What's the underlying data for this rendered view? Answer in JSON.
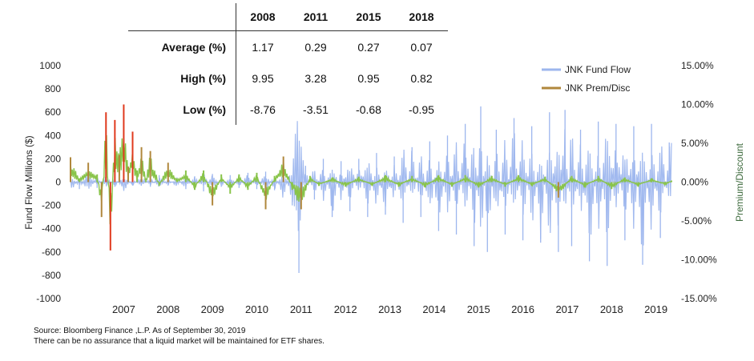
{
  "stats_table": {
    "columns": [
      "2008",
      "2011",
      "2015",
      "2018"
    ],
    "rows": [
      {
        "label": "Average (%)",
        "values": [
          "1.17",
          "0.29",
          "0.27",
          "0.07"
        ]
      },
      {
        "label": "High (%)",
        "values": [
          "9.95",
          "3.28",
          "0.95",
          "0.82"
        ]
      },
      {
        "label": "Low (%)",
        "values": [
          "-8.76",
          "-3.51",
          "-0.68",
          "-0.95"
        ]
      }
    ]
  },
  "source": {
    "line1": "Source: Bloomberg Finance ,L.P. As of September 30, 2019",
    "line2": "There can be no assurance that a liquid market will be maintained for ETF shares."
  },
  "colors": {
    "flow": "#9db6ee",
    "prem": "#b0873c",
    "prem_high": "#e03a1e",
    "prem_low": "#89c44a"
  },
  "chart_data": {
    "type": "line",
    "title": "",
    "xlabel": "",
    "ylabel": "Fund Flow Millions ($)",
    "y2label": "Premium/Discount",
    "ylim": [
      -1000,
      1000
    ],
    "y2lim": [
      -15,
      15
    ],
    "xlim": [
      2006.3,
      2019.85
    ],
    "yticks": [
      "1000",
      "800",
      "600",
      "400",
      "200",
      "0",
      "-200",
      "-400",
      "-600",
      "-800",
      "-1000"
    ],
    "y2ticks": [
      "15.00%",
      "10.00%",
      "5.00%",
      "0.00%",
      "-5.00%",
      "-10.00%",
      "-15.00%"
    ],
    "xticks": [
      "2007",
      "2008",
      "2009",
      "2010",
      "2011",
      "2012",
      "2013",
      "2014",
      "2015",
      "2016",
      "2017",
      "2018",
      "2019"
    ],
    "legend_position": "top-right",
    "series": [
      {
        "name": "JNK Fund Flow",
        "axis": "left",
        "x": [
          2006.3,
          2006.5,
          2006.7,
          2006.9,
          2007.1,
          2007.3,
          2007.5,
          2007.7,
          2007.9,
          2008.1,
          2008.3,
          2008.5,
          2008.7,
          2008.9,
          2009.1,
          2009.3,
          2009.5,
          2009.7,
          2009.9,
          2010.1,
          2010.3,
          2010.5,
          2010.7,
          2010.9,
          2011.1,
          2011.3,
          2011.45,
          2011.6,
          2011.8,
          2012.0,
          2012.2,
          2012.4,
          2012.6,
          2012.8,
          2013.0,
          2013.2,
          2013.4,
          2013.6,
          2013.8,
          2014.0,
          2014.2,
          2014.4,
          2014.6,
          2014.8,
          2015.0,
          2015.2,
          2015.4,
          2015.55,
          2015.7,
          2015.9,
          2016.1,
          2016.3,
          2016.5,
          2016.7,
          2016.9,
          2017.1,
          2017.3,
          2017.45,
          2017.6,
          2017.8,
          2018.0,
          2018.2,
          2018.4,
          2018.6,
          2018.8,
          2019.0,
          2019.2,
          2019.4,
          2019.6,
          2019.8
        ],
        "values": [
          100,
          -60,
          120,
          -50,
          60,
          -40,
          80,
          -30,
          50,
          -40,
          60,
          -30,
          40,
          -60,
          50,
          -80,
          70,
          -40,
          60,
          -50,
          80,
          -60,
          90,
          -70,
          150,
          -200,
          -780,
          140,
          -150,
          200,
          -300,
          180,
          -250,
          200,
          -300,
          250,
          -280,
          220,
          -350,
          300,
          -300,
          350,
          -420,
          400,
          -450,
          500,
          -550,
          650,
          -600,
          450,
          -450,
          550,
          -500,
          480,
          -520,
          600,
          -600,
          620,
          -550,
          450,
          -680,
          520,
          -720,
          500,
          -500,
          480,
          -710,
          500,
          -480,
          340
        ]
      },
      {
        "name": "JNK Prem/Disc",
        "axis": "right",
        "x": [
          2006.3,
          2006.5,
          2006.7,
          2006.9,
          2007.0,
          2007.1,
          2007.2,
          2007.3,
          2007.4,
          2007.5,
          2007.6,
          2007.7,
          2007.8,
          2007.9,
          2008.0,
          2008.1,
          2008.3,
          2008.5,
          2008.7,
          2008.9,
          2009.1,
          2009.3,
          2009.5,
          2009.7,
          2009.9,
          2010.1,
          2010.3,
          2010.5,
          2010.7,
          2010.9,
          2011.1,
          2011.3,
          2011.5,
          2011.7,
          2011.9,
          2012.2,
          2012.5,
          2012.8,
          2013.1,
          2013.4,
          2013.7,
          2014.0,
          2014.3,
          2014.6,
          2014.9,
          2015.2,
          2015.5,
          2015.8,
          2016.1,
          2016.4,
          2016.7,
          2017.0,
          2017.3,
          2017.6,
          2017.9,
          2018.2,
          2018.5,
          2018.8,
          2019.1,
          2019.4,
          2019.7,
          2019.85
        ],
        "values": [
          3.2,
          0.5,
          2.5,
          1.0,
          -4.5,
          9.0,
          -8.8,
          8.0,
          3.5,
          10.0,
          2.0,
          6.5,
          1.5,
          4.5,
          0.5,
          4.0,
          -0.5,
          2.5,
          0.5,
          1.5,
          -1.0,
          1.5,
          -3.0,
          1.0,
          -1.5,
          1.0,
          -1.0,
          1.2,
          -3.5,
          0.8,
          3.3,
          -1.0,
          -3.5,
          0.8,
          -0.5,
          0.6,
          -0.6,
          0.7,
          -0.5,
          0.9,
          -0.6,
          0.8,
          -0.7,
          0.9,
          -0.6,
          0.9,
          -0.7,
          0.8,
          -0.6,
          0.9,
          -0.5,
          0.7,
          -2.0,
          0.8,
          -0.7,
          0.8,
          -0.9,
          0.6,
          -0.6,
          0.5,
          -0.4,
          0.2
        ]
      }
    ]
  }
}
